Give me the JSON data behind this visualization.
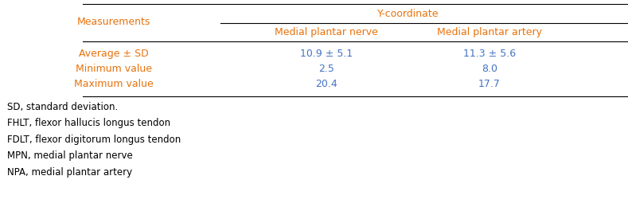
{
  "title_row": "Y-coordinate",
  "subheader_col1": "Measurements",
  "subheader_col2": "Medial plantar nerve",
  "subheader_col3": "Medial plantar artery",
  "rows": [
    [
      "Average ± SD",
      "10.9 ± 5.1",
      "11.3 ± 5.6"
    ],
    [
      "Minimum value",
      "2.5",
      "8.0"
    ],
    [
      "Maximum value",
      "20.4",
      "17.7"
    ]
  ],
  "footnotes": [
    "SD, standard deviation.",
    "FHLT, flexor hallucis longus tendon",
    "FDLT, flexor digitorum longus tendon",
    "MPN, medial plantar nerve",
    "NPA, medial plantar artery"
  ],
  "header_color": "#E8720C",
  "data_color": "#4472C4",
  "footnote_color": "#000000",
  "label_color": "#E8720C",
  "bg_color": "#ffffff",
  "line_color": "#000000",
  "font_size": 9,
  "footnote_font_size": 8.5
}
